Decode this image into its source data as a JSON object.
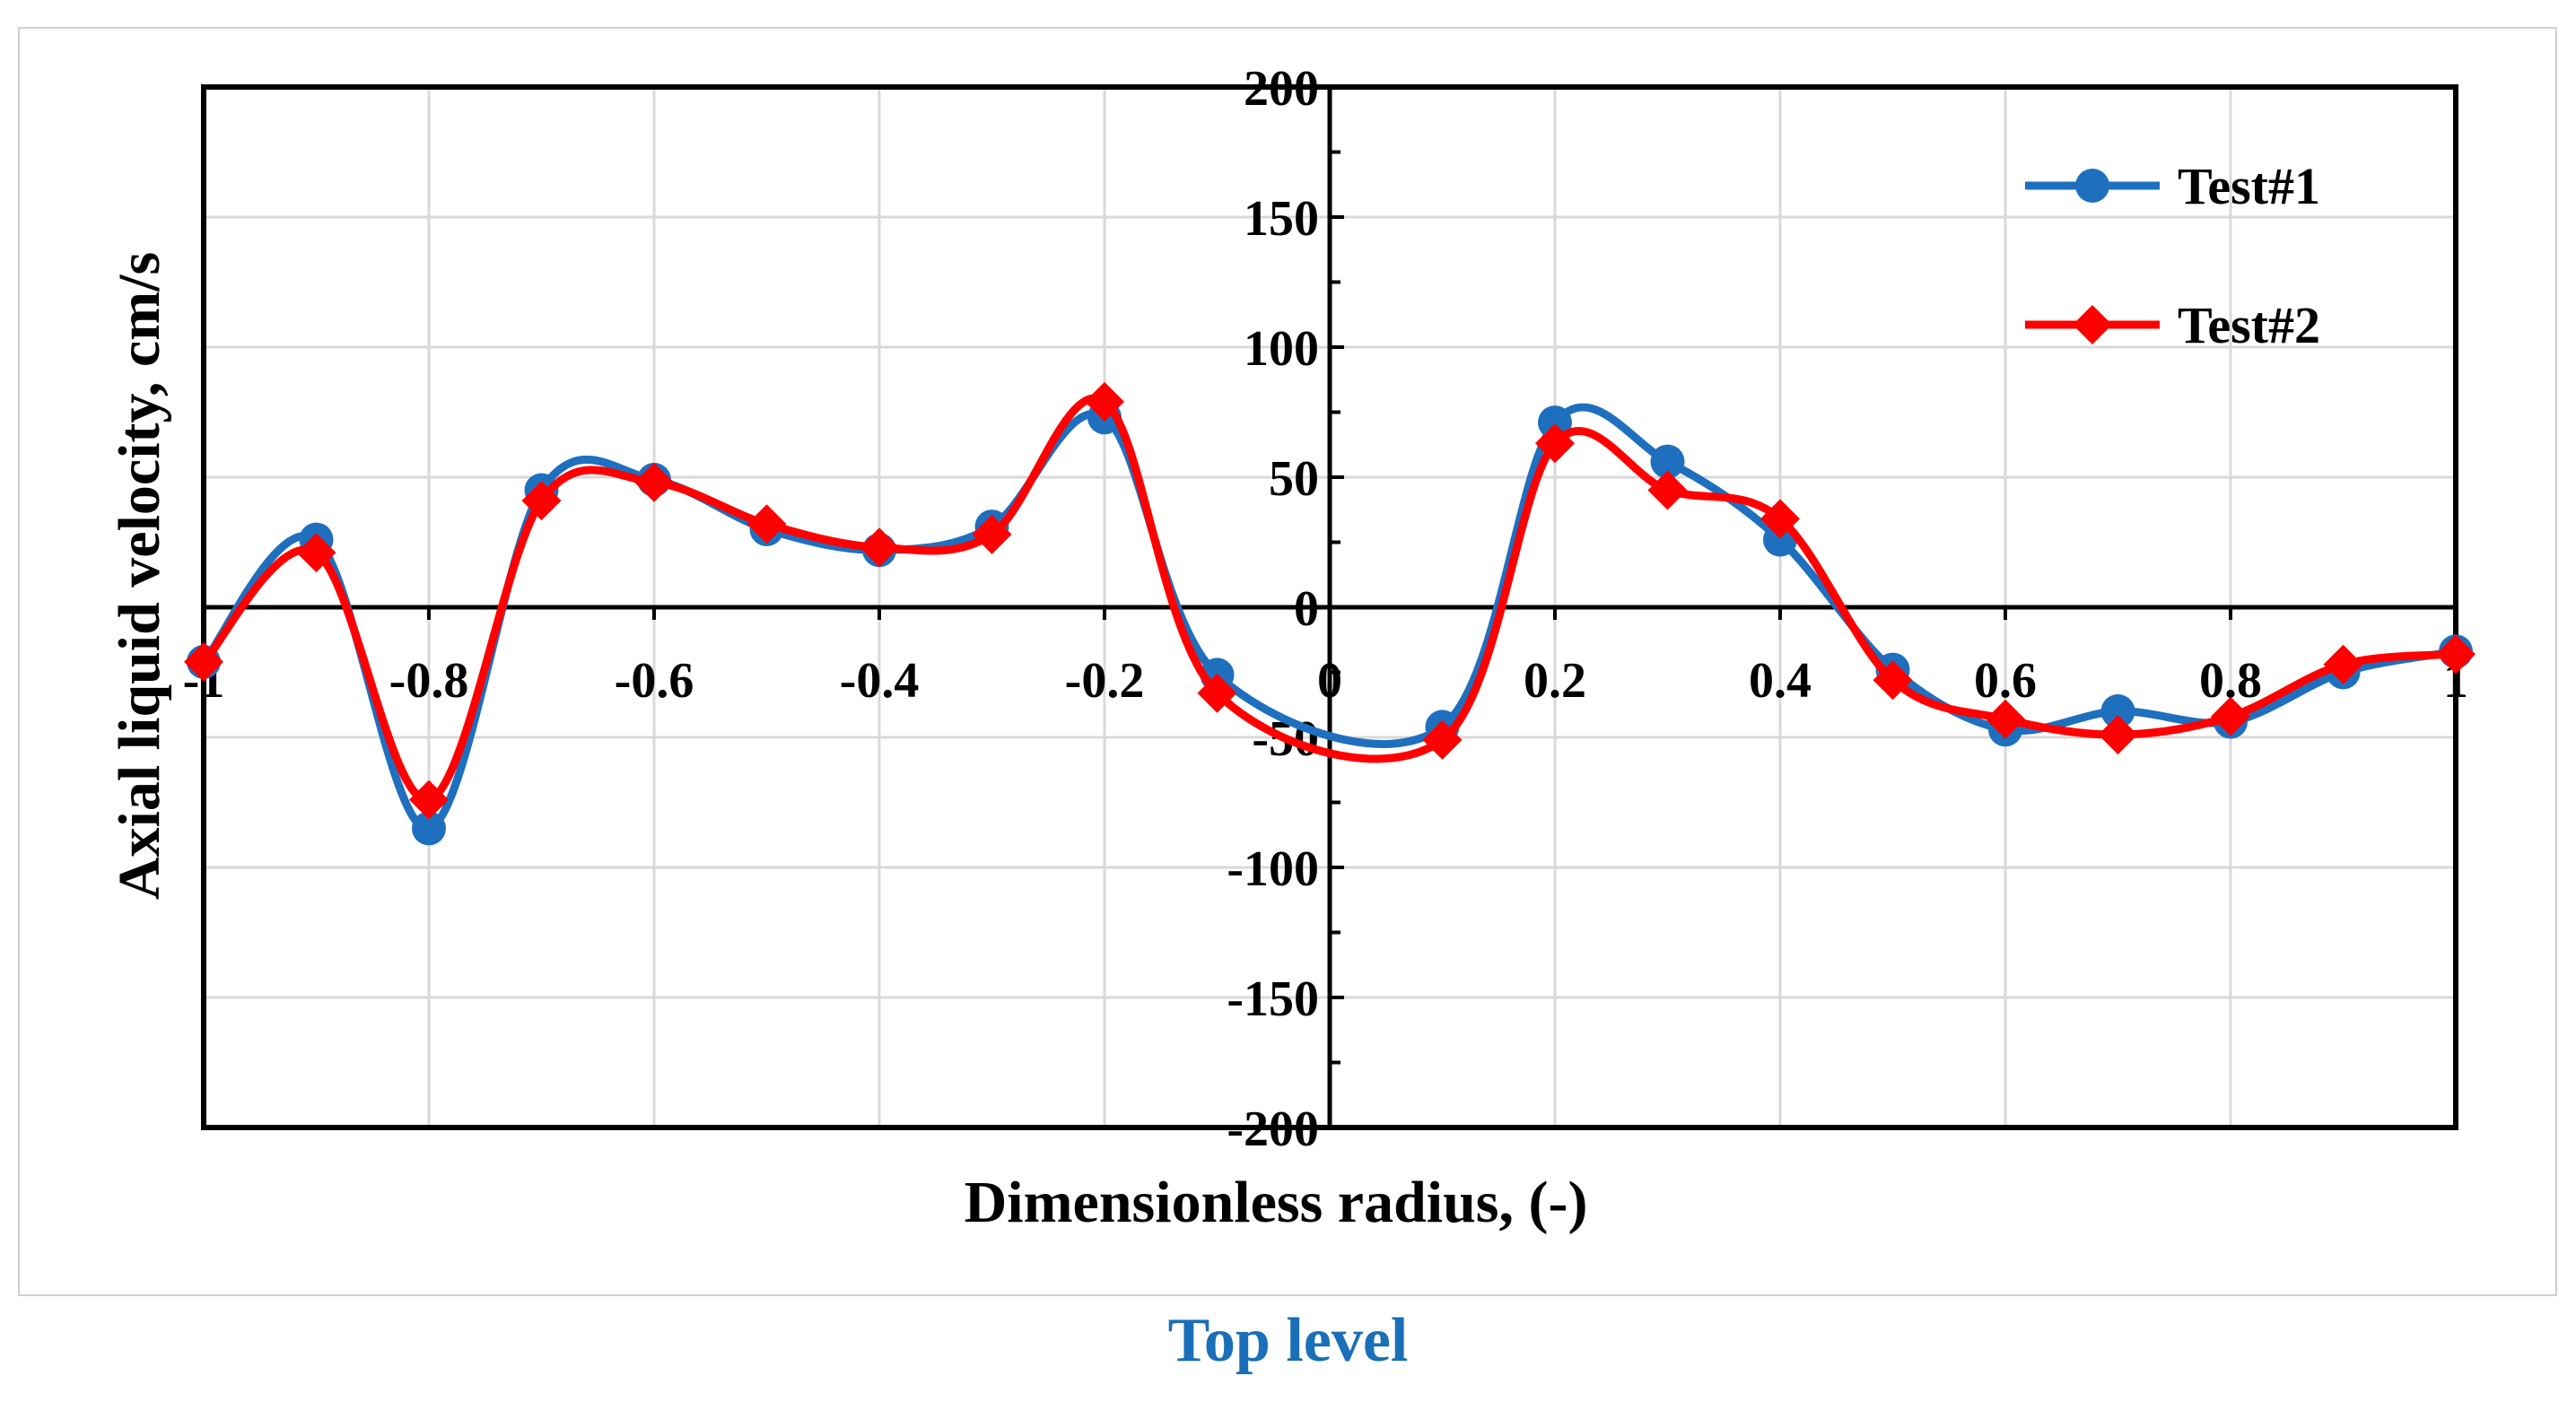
{
  "chart_data": {
    "type": "line",
    "title": "",
    "xlabel": "Dimensionless radius, (-)",
    "ylabel": "Axial liquid velocity, cm/s",
    "xlim": [
      -1,
      1
    ],
    "ylim": [
      -200,
      200
    ],
    "x_ticks": [
      -1,
      -0.8,
      -0.6,
      -0.4,
      -0.2,
      0,
      0.2,
      0.4,
      0.6,
      0.8,
      1
    ],
    "x_tick_labels": [
      "-1",
      "-0.8",
      "-0.6",
      "-0.4",
      "-0.2",
      "0",
      "0.2",
      "0.4",
      "0.6",
      "0.8",
      "1"
    ],
    "y_ticks": [
      -200,
      -150,
      -100,
      -50,
      0,
      50,
      100,
      150,
      200
    ],
    "y_tick_labels": [
      "-200",
      "-150",
      "-100",
      "-50",
      "0",
      "50",
      "100",
      "150",
      "200"
    ],
    "grid": true,
    "legend_position": "top-right",
    "x": [
      -1,
      -0.9,
      -0.8,
      -0.7,
      -0.6,
      -0.5,
      -0.4,
      -0.3,
      -0.2,
      -0.1,
      0.1,
      0.2,
      0.3,
      0.4,
      0.5,
      0.6,
      0.7,
      0.8,
      0.9,
      1
    ],
    "series": [
      {
        "name": "Test#1",
        "color": "#1f6fbf",
        "marker": "circle",
        "values": [
          -21,
          26,
          -85,
          45,
          49,
          30,
          22,
          31,
          73,
          -26,
          -46,
          71,
          56,
          26,
          -24,
          -47,
          -40,
          -44,
          -25,
          -17
        ]
      },
      {
        "name": "Test#2",
        "color": "#ff0000",
        "marker": "diamond",
        "values": [
          -21,
          21,
          -74,
          41,
          48,
          32,
          23,
          28,
          79,
          -33,
          -51,
          63,
          45,
          34,
          -28,
          -43,
          -49,
          -42,
          -22,
          -18
        ]
      }
    ],
    "caption": "Top level"
  }
}
